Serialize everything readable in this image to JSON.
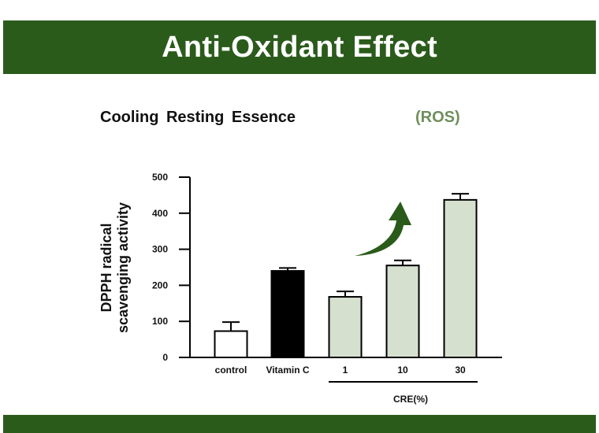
{
  "banner": {
    "title": "Anti-Oxidant Effect"
  },
  "subtitle": "Cooling Resting Essence",
  "ros_label": "(ROS)",
  "colors": {
    "banner": "#2b5b1b",
    "ros_text": "#6e8f5b",
    "arrow": "#2b5b1b"
  },
  "chart_data": {
    "type": "bar",
    "title": "",
    "ylabel_lines": [
      "DPPH radical",
      "scavenging activity"
    ],
    "xlabel": "",
    "categories": [
      "control",
      "Vitamin C",
      "1",
      "10",
      "30"
    ],
    "values": [
      73,
      240,
      168,
      255,
      437
    ],
    "error": [
      25,
      8,
      15,
      14,
      17
    ],
    "bar_colors": [
      "#ffffff",
      "#000000",
      "#d6e0cf",
      "#d6e0cf",
      "#d6e0cf"
    ],
    "ylim": [
      0,
      500
    ],
    "yticks": [
      0,
      100,
      200,
      300,
      400,
      500
    ],
    "group_label": "CRE(%)",
    "grid": false,
    "annotation": "upward trend arrow"
  }
}
